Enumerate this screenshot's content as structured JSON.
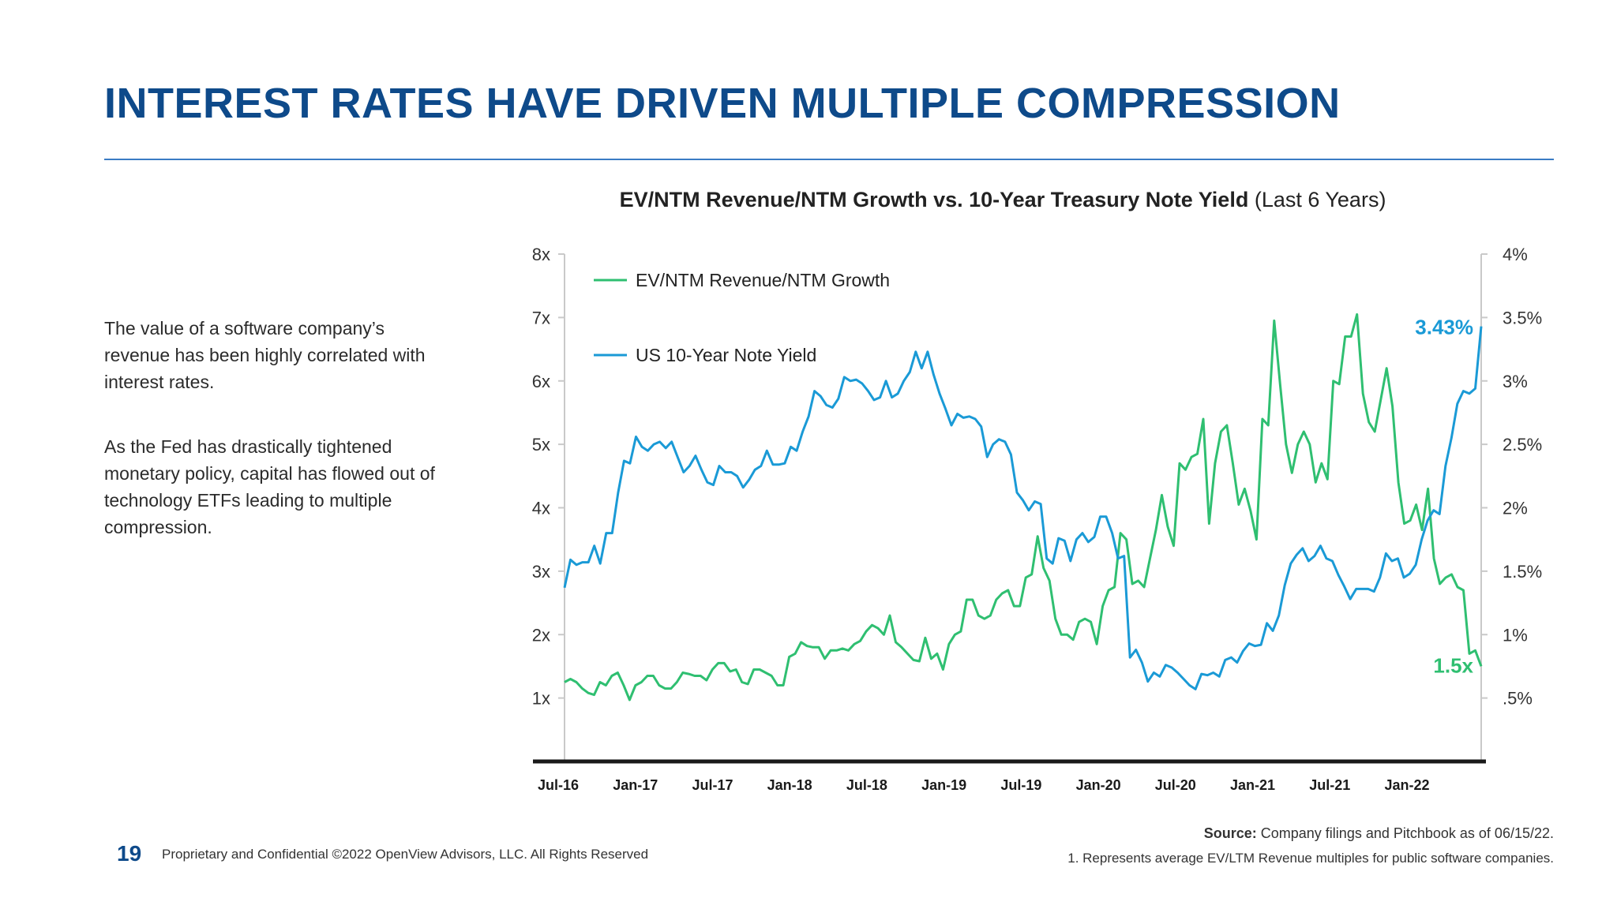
{
  "page": {
    "title": "INTEREST RATES HAVE DRIVEN MULTIPLE COMPRESSION",
    "paragraph_1": "The value of a software company’s revenue has been highly correlated with interest rates.",
    "paragraph_2": "As the Fed has drastically tightened monetary policy, capital has flowed out of technology ETFs leading to multiple compression.",
    "page_number": "19",
    "confidential": "Proprietary and Confidential ©2022 OpenView Advisors, LLC. All Rights Reserved",
    "source_label": "Source:",
    "source_text": " Company filings and Pitchbook as of 06/15/22.",
    "footnote": "1. Represents average EV/LTM Revenue multiples for public software companies."
  },
  "chart_data": {
    "type": "line",
    "title_bold": "EV/NTM Revenue/NTM Growth vs. 10-Year Treasury Note Yield",
    "title_suffix": " (Last 6 Years)",
    "x_labels": [
      "Jul-16",
      "Jan-17",
      "Jul-17",
      "Jan-18",
      "Jul-18",
      "Jan-19",
      "Jul-19",
      "Jan-20",
      "Jul-20",
      "Jan-21",
      "Jul-21",
      "Jan-22"
    ],
    "y_left": {
      "ticks": [
        "1x",
        "2x",
        "3x",
        "4x",
        "5x",
        "6x",
        "7x",
        "8x"
      ],
      "range": [
        0,
        8
      ]
    },
    "y_right": {
      "ticks": [
        ".5%",
        "1%",
        "1.5%",
        "2%",
        "2.5%",
        "3%",
        "3.5%",
        "4%"
      ],
      "range": [
        0,
        4
      ]
    },
    "grid": false,
    "legend_position": "top-left",
    "series": [
      {
        "name": "EV/NTM Revenue/NTM Growth",
        "axis": "left",
        "color": "#2fbf71",
        "end_label": "1.5x",
        "values": [
          1.25,
          1.3,
          1.25,
          1.15,
          1.08,
          1.05,
          1.25,
          1.2,
          1.35,
          1.4,
          1.2,
          0.97,
          1.2,
          1.25,
          1.35,
          1.35,
          1.2,
          1.15,
          1.15,
          1.25,
          1.4,
          1.38,
          1.35,
          1.35,
          1.28,
          1.45,
          1.55,
          1.55,
          1.42,
          1.45,
          1.25,
          1.22,
          1.45,
          1.45,
          1.4,
          1.35,
          1.2,
          1.2,
          1.65,
          1.7,
          1.88,
          1.82,
          1.8,
          1.8,
          1.62,
          1.75,
          1.75,
          1.78,
          1.75,
          1.85,
          1.9,
          2.05,
          2.15,
          2.1,
          2.0,
          2.3,
          1.88,
          1.8,
          1.7,
          1.6,
          1.58,
          1.95,
          1.62,
          1.7,
          1.45,
          1.85,
          2.0,
          2.05,
          2.55,
          2.55,
          2.3,
          2.25,
          2.3,
          2.55,
          2.65,
          2.7,
          2.45,
          2.45,
          2.9,
          2.95,
          3.55,
          3.05,
          2.85,
          2.25,
          2.0,
          2.0,
          1.92,
          2.2,
          2.25,
          2.2,
          1.85,
          2.45,
          2.7,
          2.75,
          3.6,
          3.5,
          2.8,
          2.85,
          2.75,
          3.2,
          3.65,
          4.2,
          3.7,
          3.4,
          4.7,
          4.6,
          4.8,
          4.85,
          5.4,
          3.75,
          4.7,
          5.2,
          5.3,
          4.7,
          4.05,
          4.3,
          3.95,
          3.5,
          5.4,
          5.3,
          6.95,
          5.95,
          5.0,
          4.55,
          5.0,
          5.2,
          5.0,
          4.4,
          4.7,
          4.45,
          6.0,
          5.95,
          6.7,
          6.7,
          7.05,
          5.8,
          5.35,
          5.2,
          5.7,
          6.2,
          5.6,
          4.4,
          3.75,
          3.8,
          4.05,
          3.65,
          4.3,
          3.2,
          2.8,
          2.9,
          2.95,
          2.75,
          2.7,
          1.7,
          1.75,
          1.5
        ]
      },
      {
        "name": "US 10-Year Note Yield",
        "axis": "right",
        "color": "#1a9ad6",
        "end_label": "3.43%",
        "values": [
          1.37,
          1.59,
          1.55,
          1.57,
          1.57,
          1.7,
          1.56,
          1.8,
          1.8,
          2.12,
          2.37,
          2.35,
          2.56,
          2.48,
          2.45,
          2.5,
          2.52,
          2.47,
          2.52,
          2.4,
          2.28,
          2.33,
          2.41,
          2.3,
          2.2,
          2.18,
          2.33,
          2.28,
          2.28,
          2.25,
          2.16,
          2.22,
          2.3,
          2.33,
          2.45,
          2.34,
          2.34,
          2.35,
          2.48,
          2.45,
          2.6,
          2.72,
          2.92,
          2.88,
          2.81,
          2.79,
          2.86,
          3.03,
          3.0,
          3.01,
          2.98,
          2.92,
          2.85,
          2.87,
          3.0,
          2.87,
          2.9,
          3.0,
          3.07,
          3.23,
          3.1,
          3.23,
          3.05,
          2.9,
          2.78,
          2.65,
          2.74,
          2.71,
          2.72,
          2.7,
          2.64,
          2.4,
          2.5,
          2.54,
          2.52,
          2.42,
          2.12,
          2.06,
          1.98,
          2.05,
          2.03,
          1.6,
          1.56,
          1.76,
          1.74,
          1.58,
          1.75,
          1.8,
          1.73,
          1.77,
          1.93,
          1.93,
          1.8,
          1.6,
          1.62,
          0.82,
          0.88,
          0.78,
          0.63,
          0.7,
          0.67,
          0.76,
          0.74,
          0.7,
          0.65,
          0.6,
          0.57,
          0.69,
          0.68,
          0.7,
          0.67,
          0.8,
          0.82,
          0.78,
          0.87,
          0.93,
          0.91,
          0.92,
          1.09,
          1.03,
          1.15,
          1.39,
          1.56,
          1.63,
          1.68,
          1.58,
          1.62,
          1.7,
          1.6,
          1.58,
          1.47,
          1.38,
          1.28,
          1.36,
          1.36,
          1.36,
          1.34,
          1.45,
          1.64,
          1.58,
          1.6,
          1.45,
          1.48,
          1.55,
          1.75,
          1.9,
          1.98,
          1.95,
          2.33,
          2.55,
          2.82,
          2.92,
          2.9,
          2.94,
          3.43
        ]
      }
    ]
  }
}
